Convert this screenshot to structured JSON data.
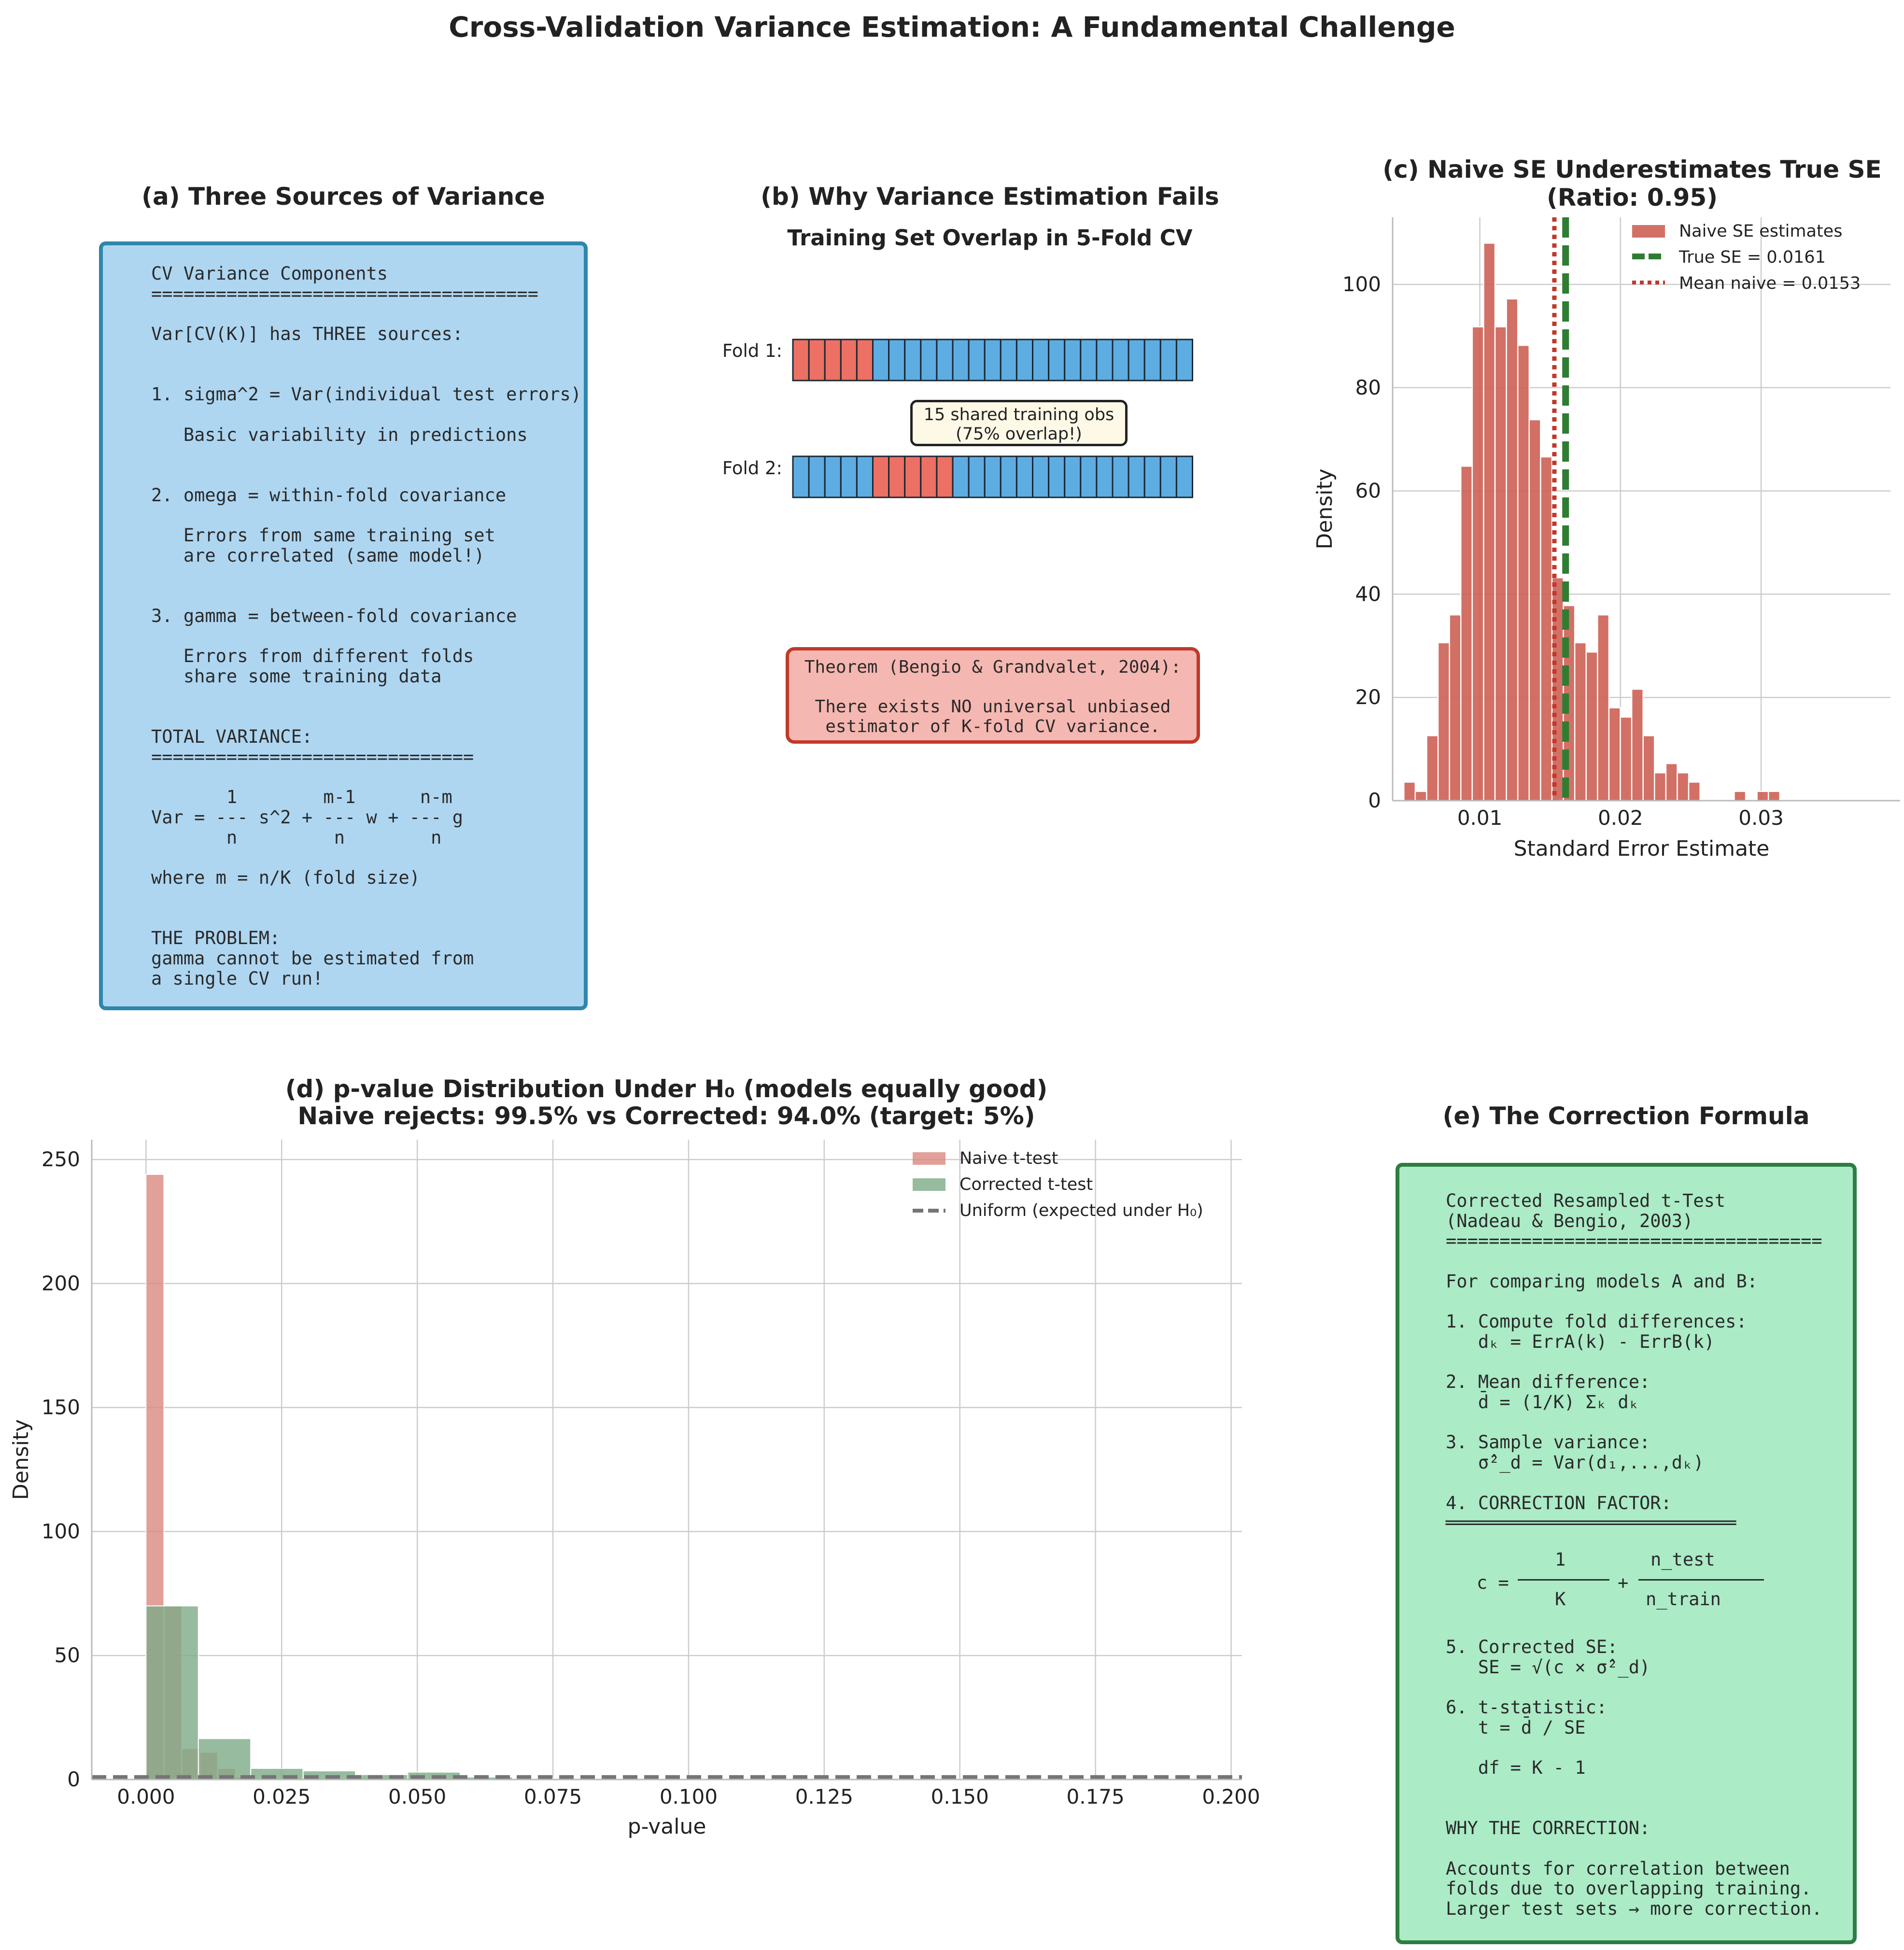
{
  "figure": {
    "suptitle": "Cross-Validation Variance Estimation: A Fundamental Challenge"
  },
  "panel_a": {
    "title": "(a) Three Sources of Variance",
    "lines": [
      "CV Variance Components",
      "====================================",
      "",
      "Var[CV(K)] has THREE sources:",
      "",
      "",
      "1. sigma^2 = Var(individual test errors)",
      "",
      "   Basic variability in predictions",
      "",
      "",
      "2. omega = within-fold covariance",
      "",
      "   Errors from same training set",
      "   are correlated (same model!)",
      "",
      "",
      "3. gamma = between-fold covariance",
      "",
      "   Errors from different folds",
      "   share some training data",
      "",
      "",
      "TOTAL VARIANCE:",
      "==============================",
      "",
      "       1        m-1      n-m",
      "Var = --- s^2 + --- w + --- g",
      "       n         n        n",
      "",
      "where m = n/K (fold size)",
      "",
      "",
      "THE PROBLEM:",
      "gamma cannot be estimated from",
      "a single CV run!"
    ]
  },
  "panel_b": {
    "title": "(b) Why Variance Estimation Fails",
    "subtitle": "Training Set Overlap in 5-Fold CV",
    "fold1_label": "Fold 1:",
    "fold2_label": "Fold 2:",
    "n_obs": 25,
    "fold1_test_range": [
      0,
      5
    ],
    "fold2_test_range": [
      5,
      10
    ],
    "test_color": "#ec7063",
    "train_color": "#5dade2",
    "overlap_line1": "15 shared training obs",
    "overlap_line2": "(75% overlap!)",
    "theorem_line1": "Theorem (Bengio & Grandvalet, 2004):",
    "theorem_line2": "There exists NO universal unbiased",
    "theorem_line3": "estimator of K-fold CV variance."
  },
  "panel_c": {
    "title_line1": "(c) Naive SE Underestimates True SE",
    "title_line2": "(Ratio: 0.95)",
    "chart_data": {
      "type": "bar",
      "title": "(c) Naive SE Underestimates True SE (Ratio: 0.95)",
      "xlabel": "Standard Error Estimate",
      "ylabel": "Density",
      "xlim": [
        0.0038,
        0.0392
      ],
      "ylim": [
        0,
        113
      ],
      "xticks": [
        "0.01",
        "0.02",
        "0.03"
      ],
      "yticks": [
        "0",
        "20",
        "40",
        "60",
        "80",
        "100"
      ],
      "bin_start": 0.0046,
      "bin_width": 0.00081,
      "values": [
        3.6,
        1.8,
        12.6,
        30.6,
        36,
        64.8,
        91.8,
        108,
        91.8,
        97.2,
        88.2,
        73.8,
        66.6,
        43.2,
        37.8,
        30.6,
        28.8,
        36,
        18,
        16.2,
        21.6,
        12.6,
        5.4,
        7.2,
        5.4,
        3.6,
        0,
        0,
        0,
        1.8,
        0,
        1.8,
        1.8
      ],
      "series": [
        {
          "name": "Naive SE estimates",
          "color": "#cd6155"
        },
        {
          "name": "True SE = 0.0161",
          "value": 0.0161,
          "color": "#2e7d32"
        },
        {
          "name": "Mean naive = 0.0153",
          "value": 0.0153,
          "color": "#c0392b"
        }
      ],
      "grid": true,
      "legend": "top-right"
    }
  },
  "panel_d": {
    "title_line1": "(d) p-value Distribution Under H₀ (models equally good)",
    "title_line2": "Naive rejects: 99.5% vs Corrected: 94.0% (target: 5%)",
    "chart_data": {
      "type": "bar",
      "title": "(d) p-value Distribution Under H₀ (models equally good) Naive rejects: 99.5% vs Corrected: 94.0% (target: 5%)",
      "xlabel": "p-value",
      "ylabel": "Density",
      "xlim": [
        -0.01,
        0.202
      ],
      "ylim": [
        0,
        258
      ],
      "xticks": [
        "0.000",
        "0.025",
        "0.050",
        "0.075",
        "0.100",
        "0.125",
        "0.150",
        "0.175",
        "0.200"
      ],
      "yticks": [
        "0",
        "50",
        "100",
        "150",
        "200",
        "250"
      ],
      "series": [
        {
          "name": "Naive t-test",
          "color": "#d98880",
          "bin_start": 0,
          "bin_width": 0.0033,
          "values": [
            244,
            70,
            12.5,
            11,
            4.5,
            1,
            0.5,
            0.3,
            0.3,
            0.2,
            0.2,
            0,
            0,
            0.3,
            0,
            0,
            0,
            0.2,
            0
          ]
        },
        {
          "name": "Corrected t-test",
          "color": "#7daa86",
          "bin_start": 0,
          "bin_width": 0.00965,
          "values": [
            70,
            16.5,
            4.5,
            3.5,
            2,
            3,
            1,
            0.5,
            0.5,
            0.3,
            0.3,
            0.3,
            0.2,
            0.2,
            0.2,
            0.2,
            0.1,
            0.1,
            0.1,
            0.1,
            0.1
          ]
        },
        {
          "name": "Uniform (expected under H₀)",
          "value": 1,
          "color": "#757575"
        }
      ],
      "grid": true,
      "legend": "top-right"
    }
  },
  "panel_e": {
    "title": "(e) The Correction Formula",
    "lines_top": [
      "Corrected Resampled t-Test",
      "(Nadeau & Bengio, 2003)",
      "===================================",
      "",
      "For comparing models A and B:",
      "",
      "1. Compute fold differences:",
      "   dₖ = ErrA(k) - ErrB(k)",
      "",
      "2. Mean difference:",
      "   d̄ = (1/K) Σₖ dₖ",
      "",
      "3. Sample variance:",
      "   σ̂²_d = Var(d₁,...,dₖ)",
      "",
      "4. CORRECTION FACTOR:",
      "═══════════════════════════"
    ],
    "formula_c": "c =",
    "formula_plus": "+",
    "formula_num1": "1",
    "formula_den1": "K",
    "formula_num2": "n_test",
    "formula_den2": "n_train",
    "lines_bottom": [
      "5. Corrected SE:",
      "   SE = √(c × σ̂²_d)",
      "",
      "6. t-statistic:",
      "   t = d̄ / SE",
      "",
      "   df = K - 1",
      "",
      "",
      "WHY THE CORRECTION:",
      "",
      "Accounts for correlation between",
      "folds due to overlapping training.",
      "Larger test sets → more correction."
    ]
  }
}
